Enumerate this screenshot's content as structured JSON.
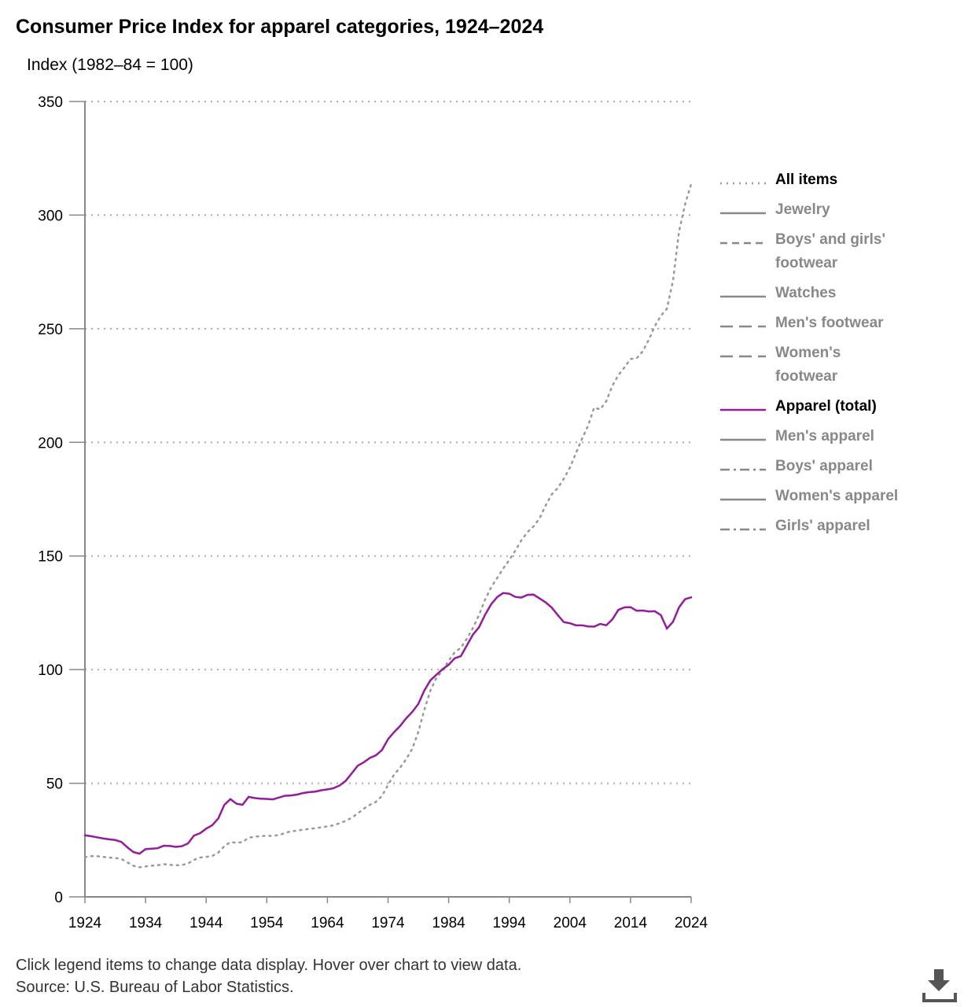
{
  "chart_data": {
    "type": "line",
    "title": "Consumer Price Index for apparel categories, 1924–2024",
    "y_label": "Index (1982–84 = 100)",
    "x": [
      1924,
      1925,
      1926,
      1927,
      1928,
      1929,
      1930,
      1931,
      1932,
      1933,
      1934,
      1935,
      1936,
      1937,
      1938,
      1939,
      1940,
      1941,
      1942,
      1943,
      1944,
      1945,
      1946,
      1947,
      1948,
      1949,
      1950,
      1951,
      1952,
      1953,
      1954,
      1955,
      1956,
      1957,
      1958,
      1959,
      1960,
      1961,
      1962,
      1963,
      1964,
      1965,
      1966,
      1967,
      1968,
      1969,
      1970,
      1971,
      1972,
      1973,
      1974,
      1975,
      1976,
      1977,
      1978,
      1979,
      1980,
      1981,
      1982,
      1983,
      1984,
      1985,
      1986,
      1987,
      1988,
      1989,
      1990,
      1991,
      1992,
      1993,
      1994,
      1995,
      1996,
      1997,
      1998,
      1999,
      2000,
      2001,
      2002,
      2003,
      2004,
      2005,
      2006,
      2007,
      2008,
      2009,
      2010,
      2011,
      2012,
      2013,
      2014,
      2015,
      2016,
      2017,
      2018,
      2019,
      2020,
      2021,
      2022,
      2023,
      2024
    ],
    "xlim": [
      1924,
      2024
    ],
    "xticks": [
      1924,
      1934,
      1944,
      1954,
      1964,
      1974,
      1984,
      1994,
      2004,
      2014,
      2024
    ],
    "ylim": [
      0,
      350
    ],
    "yticks": [
      0,
      50,
      100,
      150,
      200,
      250,
      300,
      350
    ],
    "grid": true,
    "legend": "right",
    "series": [
      {
        "name": "All items",
        "color": "#999999",
        "style": "dotted",
        "visible": true,
        "values": [
          17.5,
          17.9,
          17.9,
          17.6,
          17.3,
          17.1,
          16.7,
          15.2,
          13.7,
          13.0,
          13.4,
          13.7,
          13.9,
          14.4,
          14.1,
          13.9,
          14.0,
          14.7,
          16.3,
          17.3,
          17.6,
          18.0,
          19.5,
          22.3,
          24.1,
          23.8,
          24.1,
          26.0,
          26.5,
          26.7,
          26.9,
          26.8,
          27.2,
          28.1,
          28.9,
          29.1,
          29.6,
          29.9,
          30.2,
          30.6,
          31.0,
          31.5,
          32.4,
          33.4,
          34.8,
          36.7,
          38.8,
          40.5,
          41.8,
          44.4,
          49.3,
          53.8,
          56.9,
          60.6,
          65.2,
          72.6,
          82.4,
          90.9,
          96.5,
          99.6,
          103.9,
          107.6,
          109.6,
          113.6,
          118.3,
          124.0,
          130.7,
          136.2,
          140.3,
          144.5,
          148.2,
          152.4,
          156.9,
          160.5,
          163.0,
          166.6,
          172.2,
          177.1,
          179.9,
          184.0,
          188.9,
          195.3,
          201.6,
          207.3,
          215.3,
          214.5,
          218.1,
          224.9,
          229.6,
          233.0,
          236.7,
          237.0,
          240.0,
          245.1,
          251.1,
          255.7,
          258.8,
          271.0,
          292.7,
          304.7,
          313.7
        ]
      },
      {
        "name": "Jewelry",
        "color": "#888888",
        "style": "solid",
        "visible": false
      },
      {
        "name": "Boys' and girls' footwear",
        "color": "#888888",
        "style": "dashed",
        "visible": false
      },
      {
        "name": "Watches",
        "color": "#888888",
        "style": "solid",
        "visible": false
      },
      {
        "name": "Men's footwear",
        "color": "#888888",
        "style": "longdash",
        "visible": false
      },
      {
        "name": "Women's footwear",
        "color": "#888888",
        "style": "longdash",
        "visible": false
      },
      {
        "name": "Apparel (total)",
        "color": "#951b9b",
        "style": "solid",
        "visible": true,
        "values": [
          27.1,
          26.7,
          26.2,
          25.7,
          25.3,
          25.0,
          24.2,
          21.8,
          19.7,
          19.0,
          21.0,
          21.2,
          21.4,
          22.5,
          22.4,
          22.0,
          22.3,
          23.5,
          27.0,
          28.0,
          30.0,
          31.5,
          34.5,
          40.5,
          43.0,
          41.0,
          40.5,
          44.0,
          43.5,
          43.2,
          43.1,
          42.9,
          43.7,
          44.5,
          44.6,
          45.0,
          45.7,
          46.1,
          46.3,
          46.9,
          47.3,
          47.8,
          49.0,
          51.0,
          54.3,
          57.7,
          59.2,
          61.1,
          62.3,
          64.6,
          69.4,
          72.5,
          75.2,
          78.6,
          81.4,
          84.9,
          90.9,
          95.3,
          97.8,
          100.2,
          102.1,
          105.0,
          105.9,
          110.6,
          115.4,
          118.6,
          124.1,
          128.7,
          131.9,
          133.7,
          133.4,
          132.0,
          131.7,
          132.9,
          133.0,
          131.3,
          129.6,
          127.3,
          124.0,
          120.9,
          120.4,
          119.5,
          119.5,
          119.0,
          118.9,
          120.1,
          119.5,
          122.1,
          126.3,
          127.4,
          127.5,
          125.9,
          126.0,
          125.6,
          125.7,
          124.0,
          118.1,
          121.0,
          127.4,
          131.0,
          131.8
        ]
      },
      {
        "name": "Men's apparel",
        "color": "#888888",
        "style": "solid",
        "visible": false
      },
      {
        "name": "Boys' apparel",
        "color": "#888888",
        "style": "dashdot",
        "visible": false
      },
      {
        "name": "Women's apparel",
        "color": "#888888",
        "style": "solid",
        "visible": false
      },
      {
        "name": "Girls' apparel",
        "color": "#888888",
        "style": "dashdot",
        "visible": false
      }
    ],
    "notes": [
      "Click legend items to change data display. Hover over chart to view data.",
      "Source: U.S. Bureau of Labor Statistics."
    ]
  }
}
